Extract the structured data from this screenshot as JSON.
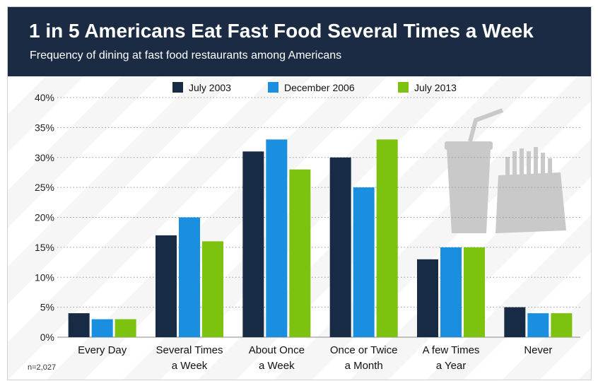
{
  "header": {
    "title": "1 in 5 Americans Eat Fast Food Several Times a Week",
    "subtitle": "Frequency of dining at fast food restaurants among Americans"
  },
  "footer": {
    "note": "n=2,027"
  },
  "colors": {
    "header_bg": "#1b2b44",
    "july_2003": "#172b45",
    "december_2006": "#1a8fe0",
    "july_2013": "#7cc20e",
    "illustration": "#c9c9c9"
  },
  "illustration": {
    "icon": "fast-food-cup-and-fries-icon"
  },
  "chart_data": {
    "type": "bar",
    "title": "1 in 5 Americans Eat Fast Food Several Times a Week",
    "subtitle": "Frequency of dining at fast food restaurants among Americans",
    "xlabel": "",
    "ylabel": "",
    "ylim": [
      0,
      40
    ],
    "yticks": [
      0,
      5,
      10,
      15,
      20,
      25,
      30,
      35,
      40
    ],
    "ytick_labels": [
      "0%",
      "5%",
      "10%",
      "15%",
      "20%",
      "25%",
      "30%",
      "35%",
      "40%"
    ],
    "grid": "horizontal dotted",
    "legend_position": "top-center",
    "categories": [
      [
        "Every Day"
      ],
      [
        "Several Times",
        "a Week"
      ],
      [
        "About Once",
        "a Week"
      ],
      [
        "Once or Twice",
        "a Month"
      ],
      [
        "A few Times",
        "a Year"
      ],
      [
        "Never"
      ]
    ],
    "series": [
      {
        "name": "July 2003",
        "color": "#172b45",
        "values": [
          4,
          17,
          31,
          30,
          13,
          5
        ]
      },
      {
        "name": "December 2006",
        "color": "#1a8fe0",
        "values": [
          3,
          20,
          33,
          25,
          15,
          4
        ]
      },
      {
        "name": "July 2013",
        "color": "#7cc20e",
        "values": [
          3,
          16,
          28,
          33,
          15,
          4
        ]
      }
    ]
  }
}
